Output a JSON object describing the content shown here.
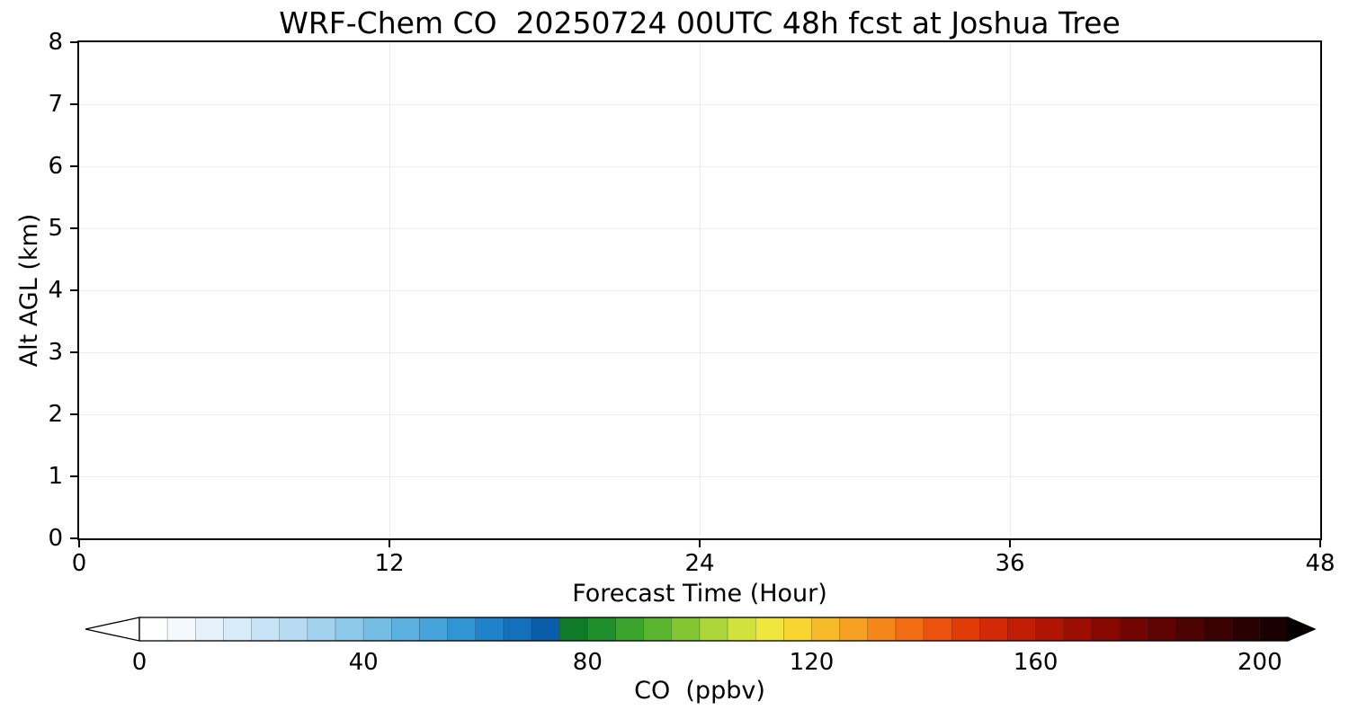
{
  "chart_data": {
    "type": "heatmap",
    "title": "WRF-Chem CO  20250724 00UTC 48h fcst at Joshua Tree",
    "xlabel": "Forecast Time (Hour)",
    "ylabel": "Alt AGL (km)",
    "xlim": [
      0,
      48
    ],
    "ylim": [
      0,
      8
    ],
    "xticks": [
      0,
      12,
      24,
      36,
      48
    ],
    "yticks": [
      0,
      1,
      2,
      3,
      4,
      5,
      6,
      7,
      8
    ],
    "grid": true,
    "values": [],
    "field_note": "plot area renders blank/white - no CO field values visible in the cross-section",
    "colorbar": {
      "label": "CO  (ppbv)",
      "ticks": [
        0,
        40,
        80,
        120,
        160,
        200
      ],
      "value_range": [
        0,
        205
      ],
      "segment_step": 5,
      "extend": "both",
      "under_color": "#ffffff",
      "over_color": "#050000",
      "colors": [
        "#ffffff",
        "#f4f9fd",
        "#e6f2fa",
        "#d8ebf8",
        "#c8e3f5",
        "#b6dbf2",
        "#a2d2ee",
        "#8cc8ea",
        "#75bde5",
        "#5db1e0",
        "#46a4da",
        "#3195d3",
        "#2083c9",
        "#1570bb",
        "#0c5da9",
        "#0f7a28",
        "#1f8f2b",
        "#3aa42d",
        "#5cb530",
        "#82c634",
        "#abd538",
        "#d2e23c",
        "#efe63e",
        "#f8d431",
        "#f7bb29",
        "#f6a021",
        "#f4861a",
        "#f16c13",
        "#ec520d",
        "#e13b08",
        "#d22a06",
        "#c21e05",
        "#b01503",
        "#9c0e02",
        "#870902",
        "#720502",
        "#5e0301",
        "#4b0201",
        "#3a0101",
        "#2a0101",
        "#1a0000"
      ]
    },
    "colors": {
      "axis": "#000000",
      "grid": "#ececec",
      "plot_background": "#ffffff"
    }
  }
}
